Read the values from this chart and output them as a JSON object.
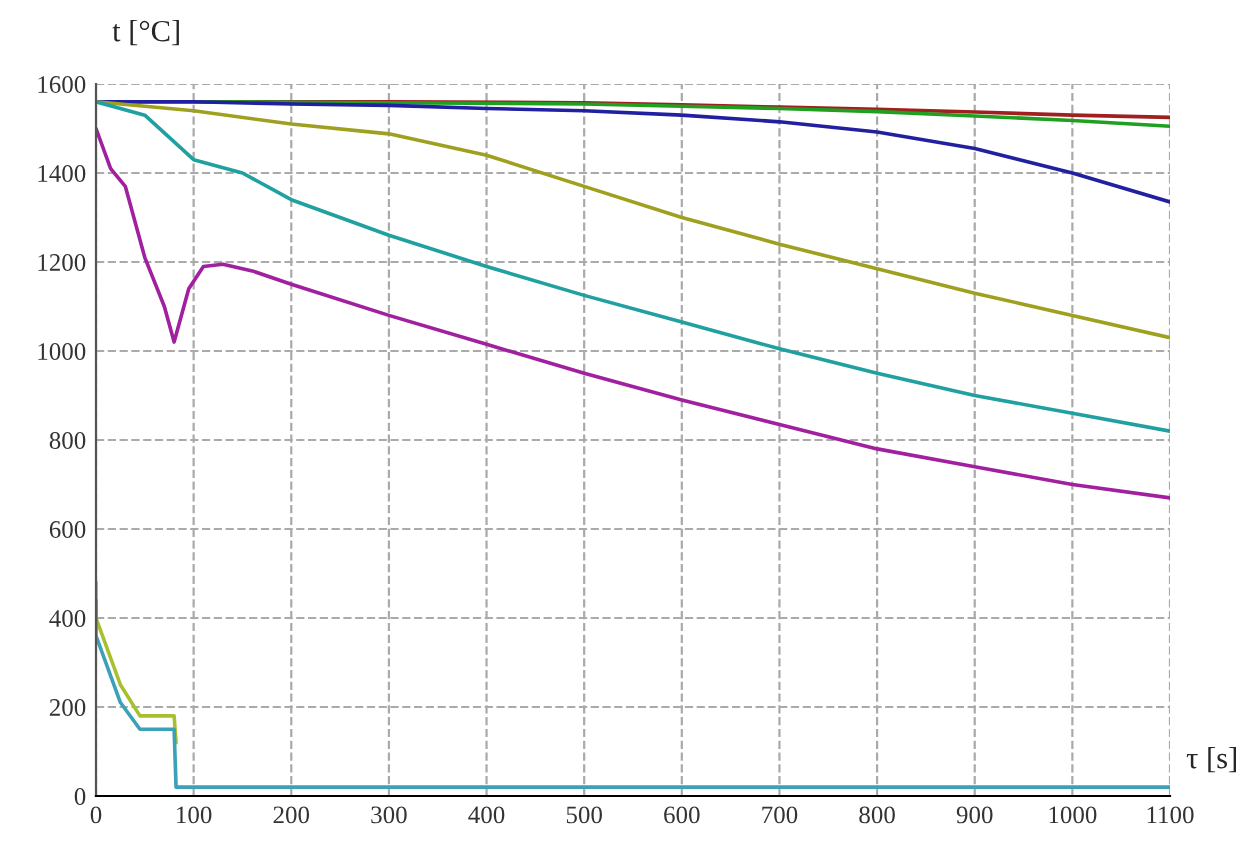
{
  "chart_data": {
    "type": "line",
    "xlabel": "τ [s]",
    "ylabel": "t [°C]",
    "xlim": [
      0,
      1100
    ],
    "ylim": [
      0,
      1600
    ],
    "xticks": [
      0,
      100,
      200,
      300,
      400,
      500,
      600,
      700,
      800,
      900,
      1000,
      1100
    ],
    "yticks": [
      0,
      200,
      400,
      600,
      800,
      1000,
      1200,
      1400,
      1600
    ],
    "grid": true,
    "marker": "none",
    "line_style": "solid",
    "series": [
      {
        "color": "#a02020",
        "x": [
          0,
          100,
          300,
          500,
          600,
          700,
          800,
          900,
          1000,
          1100
        ],
        "values": [
          1560,
          1560,
          1560,
          1558,
          1553,
          1548,
          1543,
          1537,
          1530,
          1525
        ]
      },
      {
        "color": "#20a020",
        "x": [
          0,
          100,
          300,
          500,
          600,
          700,
          800,
          900,
          1000,
          1100
        ],
        "values": [
          1560,
          1560,
          1558,
          1555,
          1550,
          1545,
          1538,
          1528,
          1518,
          1505
        ]
      },
      {
        "color": "#2020a0",
        "x": [
          0,
          100,
          200,
          300,
          400,
          500,
          600,
          700,
          800,
          900,
          1000,
          1100
        ],
        "values": [
          1560,
          1560,
          1555,
          1552,
          1545,
          1540,
          1530,
          1515,
          1492,
          1455,
          1400,
          1335
        ]
      },
      {
        "color": "#a0a020",
        "x": [
          0,
          100,
          200,
          300,
          400,
          500,
          600,
          700,
          800,
          900,
          1000,
          1100
        ],
        "values": [
          1560,
          1540,
          1510,
          1488,
          1440,
          1370,
          1300,
          1240,
          1185,
          1130,
          1080,
          1030
        ]
      },
      {
        "color": "#20a0a0",
        "x": [
          0,
          50,
          75,
          100,
          150,
          200,
          300,
          400,
          500,
          600,
          700,
          800,
          900,
          1000,
          1100
        ],
        "values": [
          1560,
          1530,
          1480,
          1430,
          1400,
          1340,
          1260,
          1190,
          1125,
          1065,
          1005,
          950,
          900,
          860,
          820
        ]
      },
      {
        "color": "#a020a0",
        "x": [
          0,
          15,
          30,
          50,
          70,
          80,
          95,
          110,
          130,
          160,
          200,
          300,
          400,
          500,
          600,
          700,
          800,
          900,
          1000,
          1100
        ],
        "values": [
          1500,
          1410,
          1370,
          1210,
          1100,
          1020,
          1140,
          1190,
          1195,
          1180,
          1150,
          1080,
          1015,
          950,
          890,
          835,
          780,
          740,
          700,
          670
        ]
      },
      {
        "color": "#a8c030",
        "x": [
          0,
          0,
          25,
          45,
          80,
          82
        ],
        "values": [
          480,
          400,
          250,
          180,
          180,
          120
        ]
      },
      {
        "color": "#3ba0b8",
        "x": [
          0,
          0,
          25,
          45,
          80,
          82,
          1100
        ],
        "values": [
          440,
          360,
          210,
          150,
          150,
          20,
          20
        ]
      }
    ]
  }
}
